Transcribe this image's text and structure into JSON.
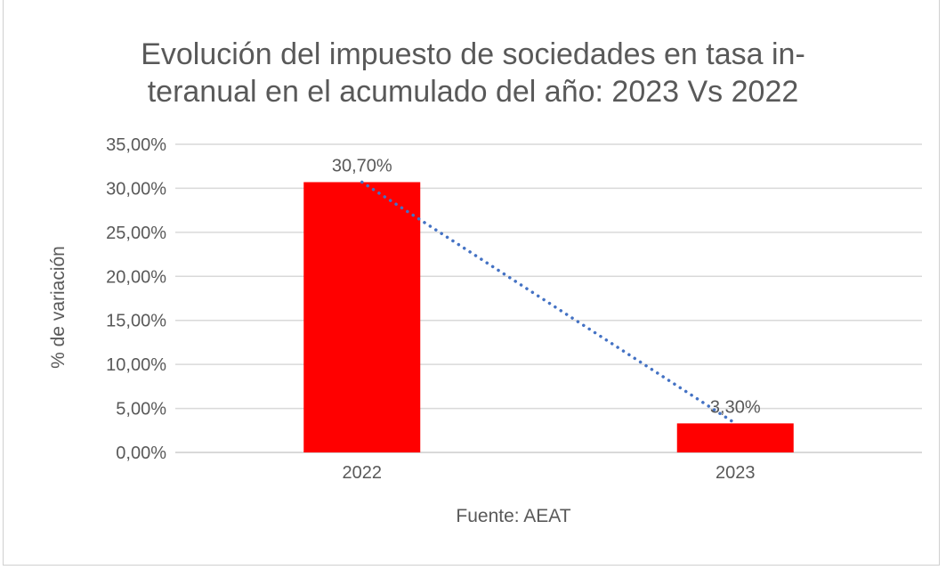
{
  "chart_data": {
    "type": "bar",
    "title_line1": "Evolución del impuesto de sociedades en tasa in-",
    "title_line2": "teranual en el acumulado del año: 2023 Vs 2022",
    "ylabel": "% de variación",
    "xlabel": "Fuente: AEAT",
    "categories": [
      "2022",
      "2023"
    ],
    "values": [
      30.7,
      3.3
    ],
    "data_labels": [
      "30,70%",
      "3,30%"
    ],
    "ylim": [
      0,
      35
    ],
    "yticks": [
      0,
      5,
      10,
      15,
      20,
      25,
      30,
      35
    ],
    "ytick_labels": [
      "0,00%",
      "5,00%",
      "10,00%",
      "15,00%",
      "20,00%",
      "25,00%",
      "30,00%",
      "35,00%"
    ],
    "grid": true,
    "trendline": {
      "type": "linear",
      "style": "dotted",
      "color": "#4472c4"
    },
    "colors": {
      "bar": "#ff0000",
      "grid": "#d9d9d9",
      "text": "#595959"
    }
  }
}
